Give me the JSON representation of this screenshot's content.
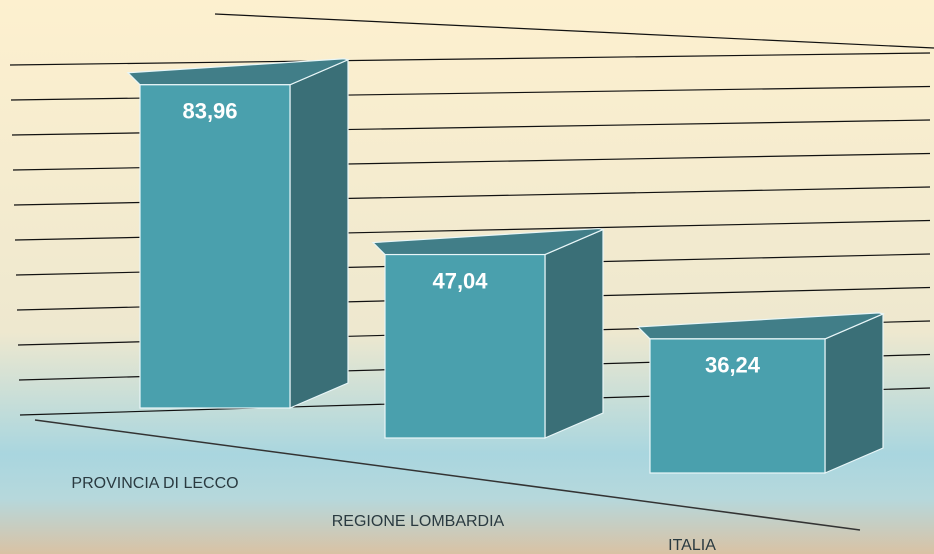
{
  "chart_data": {
    "type": "bar3d",
    "categories": [
      "PROVINCIA DI LECCO",
      "REGIONE LOMBARDIA",
      "ITALIA"
    ],
    "values": [
      83.96,
      47.04,
      36.24
    ],
    "value_labels": [
      "83,96",
      "47,04",
      "36,24"
    ],
    "color": "#4aa0ad",
    "ylim": [
      0,
      100
    ],
    "yticks": [
      0,
      10,
      20,
      30,
      40,
      50,
      60,
      70,
      80,
      90,
      100
    ],
    "grid": true
  }
}
